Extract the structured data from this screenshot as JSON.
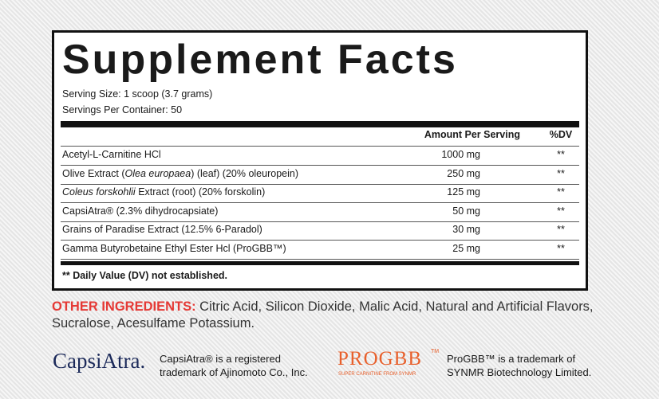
{
  "label": {
    "title": "Supplement Facts",
    "serving_size": "Serving Size: 1 scoop (3.7 grams)",
    "servings_per_container": "Servings Per Container: 50",
    "header": {
      "amount": "Amount Per Serving",
      "dv": "%DV"
    },
    "rows": [
      {
        "name": [
          {
            "text": "Acetyl-L-Carnitine HCl",
            "italic": false
          }
        ],
        "amount": "1000 mg",
        "dv": "**"
      },
      {
        "name": [
          {
            "text": "Olive Extract (",
            "italic": false
          },
          {
            "text": "Olea europaea",
            "italic": true
          },
          {
            "text": ") (leaf) (20% oleuropein)",
            "italic": false
          }
        ],
        "amount": "250 mg",
        "dv": "**"
      },
      {
        "name": [
          {
            "text": "Coleus forskohlii",
            "italic": true
          },
          {
            "text": " Extract (root) (20% forskolin)",
            "italic": false
          }
        ],
        "amount": "125 mg",
        "dv": "**"
      },
      {
        "name": [
          {
            "text": "CapsiAtra® (2.3% dihydrocapsiate)",
            "italic": false
          }
        ],
        "amount": "50 mg",
        "dv": "**"
      },
      {
        "name": [
          {
            "text": "Grains of Paradise Extract (12.5% 6-Paradol)",
            "italic": false
          }
        ],
        "amount": "30 mg",
        "dv": "**"
      },
      {
        "name": [
          {
            "text": "Gamma Butyrobetaine Ethyl Ester Hcl (ProGBB™)",
            "italic": false
          }
        ],
        "amount": "25 mg",
        "dv": "**"
      }
    ],
    "footnote": "** Daily Value (DV) not established."
  },
  "other_ingredients": {
    "label": "OTHER INGREDIENTS:",
    "text": " Citric Acid, Silicon Dioxide, Malic Acid, Natural and Artificial Flavors, Sucralose, Acesulfame Potassium."
  },
  "trademarks": [
    {
      "logo": "CapsiAtra.",
      "text": "CapsiAtra® is a registered trademark of Ajinomoto Co., Inc."
    },
    {
      "logo": "PROGBB",
      "logo_tm": "TM",
      "logo_tagline": "SUPER CARNITINE FROM SYNMR",
      "text": "ProGBB™ is a trademark of SYNMR Biotechnology Limited."
    }
  ]
}
